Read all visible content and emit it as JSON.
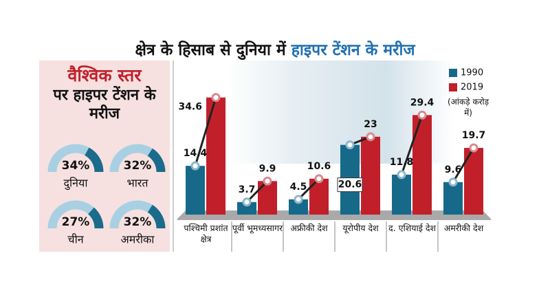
{
  "header": {
    "title_part1": "क्षेत्र के हिसाब से दुनिया में",
    "title_part2": "हाइपर टेंशन के मरीज"
  },
  "chart_data": [
    {
      "type": "gauge",
      "title": "वैश्विक स्तर",
      "subtitle": "पर हाइपर टेंशन के मरीज",
      "categories": [
        "दुनिया",
        "भारत",
        "चीन",
        "अमरीका"
      ],
      "values": [
        34,
        32,
        27,
        32
      ],
      "value_labels": [
        "34%",
        "32%",
        "27%",
        "32%"
      ],
      "ylim": [
        0,
        100
      ],
      "colors": [
        "#1b6b8c",
        "#a9d0e2"
      ]
    },
    {
      "type": "bar",
      "note": "(आंकड़े करोड़ में)",
      "categories": [
        "पश्चिमी प्रशांत क्षेत्र",
        "पूर्वी भूमध्यसागर",
        "अफ्रीकी देश",
        "यूरोपीय देश",
        "द. एशियाई देश",
        "अमरीकी देश"
      ],
      "series": [
        {
          "name": "1990",
          "color": "#17698a",
          "values": [
            14.4,
            3.7,
            4.5,
            20.6,
            11.8,
            9.6
          ]
        },
        {
          "name": "2019",
          "color": "#c1202b",
          "values": [
            34.6,
            9.9,
            10.6,
            23,
            29.4,
            19.7
          ]
        }
      ],
      "ylim": [
        0,
        38
      ],
      "legend": "top-right"
    }
  ]
}
